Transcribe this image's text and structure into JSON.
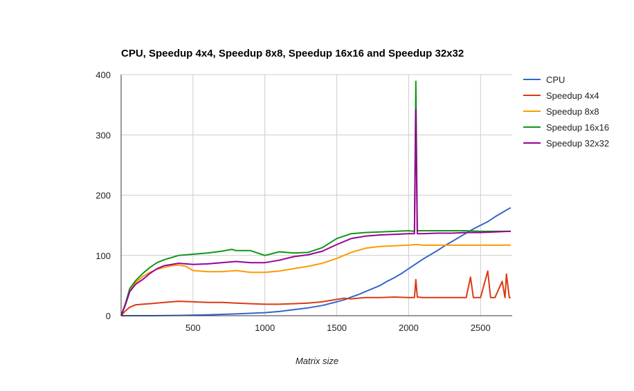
{
  "chart_data": {
    "type": "line",
    "title": "CPU, Speedup 4x4, Speedup 8x8, Speedup 16x16 and Speedup 32x32",
    "xlabel": "Matrix size",
    "ylabel": "",
    "xlim": [
      0,
      2720
    ],
    "ylim": [
      0,
      400
    ],
    "x_ticks": [
      500,
      1000,
      1500,
      2000,
      2500
    ],
    "y_ticks": [
      0,
      100,
      200,
      300,
      400
    ],
    "x_tick_labels": [
      "500",
      "1000",
      "1500",
      "2000",
      "2500"
    ],
    "y_tick_labels": [
      "0",
      "100",
      "200",
      "300",
      "400"
    ],
    "grid": true,
    "legend_position": "right",
    "series": [
      {
        "name": "CPU",
        "color": "#3366cc",
        "points": [
          [
            0,
            0
          ],
          [
            200,
            0
          ],
          [
            400,
            0.5
          ],
          [
            600,
            1.5
          ],
          [
            800,
            3
          ],
          [
            1000,
            5
          ],
          [
            1100,
            7
          ],
          [
            1200,
            10
          ],
          [
            1300,
            13
          ],
          [
            1400,
            17
          ],
          [
            1500,
            23
          ],
          [
            1560,
            27
          ],
          [
            1600,
            31
          ],
          [
            1650,
            35
          ],
          [
            1700,
            40
          ],
          [
            1750,
            45
          ],
          [
            1800,
            50
          ],
          [
            1850,
            57
          ],
          [
            1900,
            63
          ],
          [
            1950,
            70
          ],
          [
            2000,
            78
          ],
          [
            2050,
            86
          ],
          [
            2100,
            94
          ],
          [
            2150,
            101
          ],
          [
            2200,
            108
          ],
          [
            2250,
            116
          ],
          [
            2300,
            123
          ],
          [
            2350,
            130
          ],
          [
            2400,
            137
          ],
          [
            2450,
            144
          ],
          [
            2500,
            150
          ],
          [
            2550,
            156
          ],
          [
            2600,
            164
          ],
          [
            2650,
            171
          ],
          [
            2700,
            178
          ],
          [
            2710,
            179
          ]
        ]
      },
      {
        "name": "Speedup 4x4",
        "color": "#dc3912",
        "points": [
          [
            0,
            0
          ],
          [
            30,
            8
          ],
          [
            60,
            14
          ],
          [
            100,
            18
          ],
          [
            150,
            19
          ],
          [
            200,
            20
          ],
          [
            300,
            22
          ],
          [
            400,
            24
          ],
          [
            500,
            23
          ],
          [
            600,
            22
          ],
          [
            700,
            22
          ],
          [
            800,
            21
          ],
          [
            900,
            20
          ],
          [
            1000,
            19
          ],
          [
            1100,
            19
          ],
          [
            1200,
            20
          ],
          [
            1300,
            21
          ],
          [
            1400,
            23
          ],
          [
            1500,
            27
          ],
          [
            1550,
            29
          ],
          [
            1600,
            28
          ],
          [
            1700,
            30
          ],
          [
            1800,
            30
          ],
          [
            1900,
            31
          ],
          [
            2000,
            30
          ],
          [
            2040,
            30
          ],
          [
            2050,
            60
          ],
          [
            2060,
            31
          ],
          [
            2100,
            30
          ],
          [
            2200,
            30
          ],
          [
            2300,
            30
          ],
          [
            2400,
            30
          ],
          [
            2430,
            64
          ],
          [
            2450,
            30
          ],
          [
            2500,
            30
          ],
          [
            2550,
            74
          ],
          [
            2570,
            30
          ],
          [
            2600,
            30
          ],
          [
            2650,
            57
          ],
          [
            2670,
            30
          ],
          [
            2680,
            69
          ],
          [
            2700,
            30
          ],
          [
            2710,
            30
          ]
        ]
      },
      {
        "name": "Speedup 8x8",
        "color": "#ff9900",
        "points": [
          [
            0,
            0
          ],
          [
            30,
            20
          ],
          [
            60,
            42
          ],
          [
            100,
            55
          ],
          [
            150,
            65
          ],
          [
            200,
            72
          ],
          [
            250,
            77
          ],
          [
            300,
            80
          ],
          [
            350,
            83
          ],
          [
            400,
            84
          ],
          [
            450,
            82
          ],
          [
            500,
            75
          ],
          [
            600,
            73
          ],
          [
            700,
            73
          ],
          [
            800,
            75
          ],
          [
            900,
            72
          ],
          [
            1000,
            72
          ],
          [
            1100,
            74
          ],
          [
            1200,
            78
          ],
          [
            1300,
            82
          ],
          [
            1400,
            87
          ],
          [
            1500,
            95
          ],
          [
            1600,
            105
          ],
          [
            1700,
            112
          ],
          [
            1800,
            115
          ],
          [
            1900,
            116
          ],
          [
            2000,
            117
          ],
          [
            2050,
            118
          ],
          [
            2100,
            117
          ],
          [
            2200,
            117
          ],
          [
            2300,
            117
          ],
          [
            2400,
            117
          ],
          [
            2500,
            117
          ],
          [
            2600,
            117
          ],
          [
            2700,
            117
          ],
          [
            2710,
            117
          ]
        ]
      },
      {
        "name": "Speedup 16x16",
        "color": "#109618",
        "points": [
          [
            0,
            0
          ],
          [
            30,
            20
          ],
          [
            60,
            45
          ],
          [
            100,
            58
          ],
          [
            150,
            70
          ],
          [
            200,
            80
          ],
          [
            250,
            88
          ],
          [
            300,
            93
          ],
          [
            400,
            100
          ],
          [
            500,
            102
          ],
          [
            600,
            104
          ],
          [
            700,
            107
          ],
          [
            770,
            110
          ],
          [
            800,
            108
          ],
          [
            900,
            108
          ],
          [
            1000,
            100
          ],
          [
            1100,
            106
          ],
          [
            1200,
            104
          ],
          [
            1300,
            105
          ],
          [
            1400,
            113
          ],
          [
            1500,
            128
          ],
          [
            1600,
            136
          ],
          [
            1700,
            138
          ],
          [
            1800,
            139
          ],
          [
            1900,
            140
          ],
          [
            2000,
            141
          ],
          [
            2040,
            140
          ],
          [
            2050,
            389
          ],
          [
            2060,
            141
          ],
          [
            2100,
            141
          ],
          [
            2200,
            141
          ],
          [
            2300,
            141
          ],
          [
            2400,
            141
          ],
          [
            2500,
            140
          ],
          [
            2600,
            140
          ],
          [
            2700,
            140
          ],
          [
            2710,
            140
          ]
        ]
      },
      {
        "name": "Speedup 32x32",
        "color": "#990099",
        "points": [
          [
            0,
            0
          ],
          [
            30,
            18
          ],
          [
            60,
            40
          ],
          [
            100,
            52
          ],
          [
            150,
            60
          ],
          [
            200,
            70
          ],
          [
            250,
            78
          ],
          [
            300,
            83
          ],
          [
            400,
            87
          ],
          [
            500,
            85
          ],
          [
            600,
            86
          ],
          [
            700,
            88
          ],
          [
            800,
            90
          ],
          [
            900,
            88
          ],
          [
            1000,
            88
          ],
          [
            1100,
            92
          ],
          [
            1200,
            98
          ],
          [
            1300,
            101
          ],
          [
            1400,
            107
          ],
          [
            1500,
            118
          ],
          [
            1600,
            128
          ],
          [
            1700,
            132
          ],
          [
            1800,
            134
          ],
          [
            1900,
            135
          ],
          [
            2000,
            136
          ],
          [
            2040,
            136
          ],
          [
            2050,
            342
          ],
          [
            2060,
            136
          ],
          [
            2100,
            136
          ],
          [
            2200,
            137
          ],
          [
            2300,
            137
          ],
          [
            2400,
            138
          ],
          [
            2500,
            138
          ],
          [
            2600,
            139
          ],
          [
            2700,
            140
          ],
          [
            2710,
            140
          ]
        ]
      }
    ]
  }
}
